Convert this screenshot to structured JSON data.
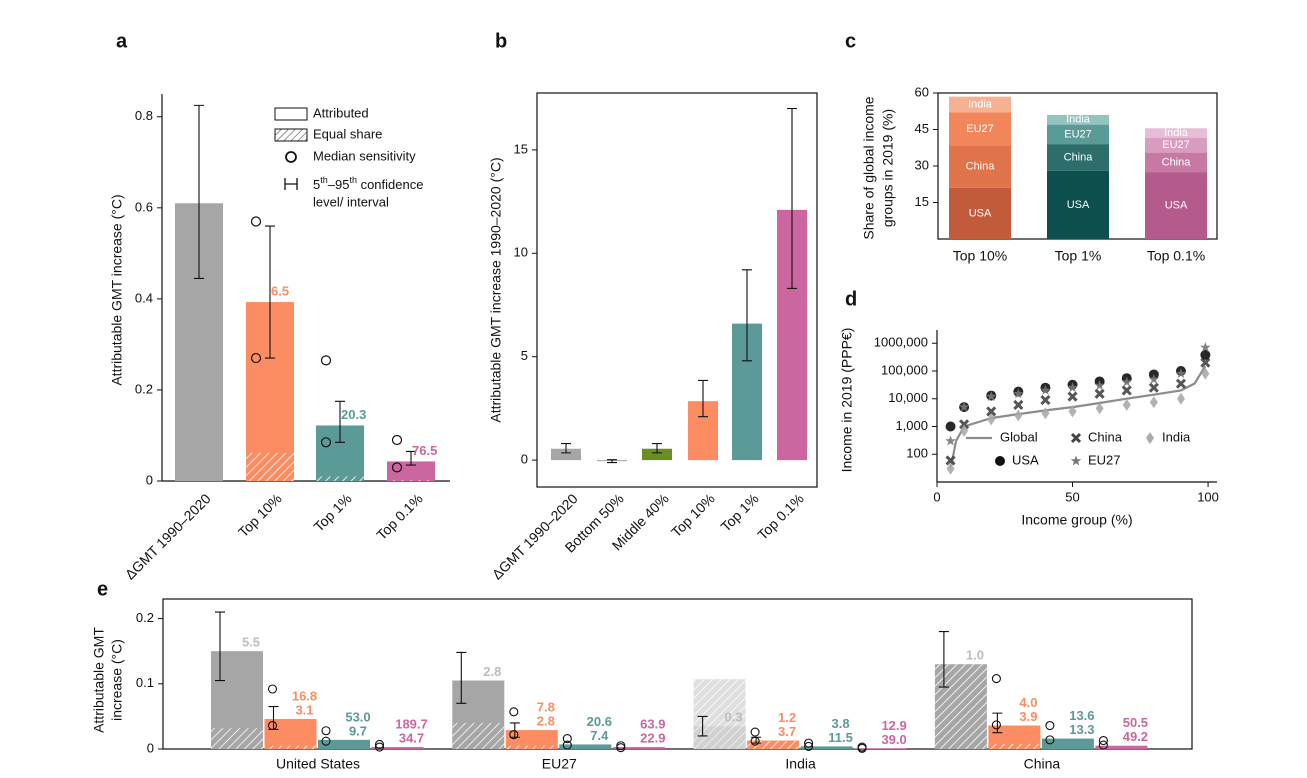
{
  "chart_data": [
    {
      "type": "bar",
      "panel": "a",
      "ylabel": "Attributable GMT increase (°C)",
      "categories": [
        "ΔGMT 1990–2020",
        "Top 10%",
        "Top 1%",
        "Top 0.1%"
      ],
      "values": [
        0.61,
        0.393,
        0.122,
        0.043
      ],
      "colors": [
        "#a6a6a6",
        "#fc8d62",
        "#5b9a97",
        "#cc66a0"
      ],
      "equal_share": [
        null,
        0.062,
        0.01,
        0.002
      ],
      "ci": [
        [
          0.445,
          0.825
        ],
        [
          0.27,
          0.56
        ],
        [
          0.085,
          0.175
        ],
        [
          0.035,
          0.065
        ]
      ],
      "median_sensitivity": [
        null,
        [
          0.57,
          0.27
        ],
        [
          0.265,
          0.085
        ],
        [
          0.09,
          0.03
        ]
      ],
      "ratio_labels": [
        null,
        "6.5",
        "20.3",
        "76.5"
      ],
      "ylim": [
        0,
        0.85
      ],
      "yticks": [
        0,
        0.2,
        0.4,
        0.6,
        0.8
      ],
      "legend": {
        "attributed": "Attributed",
        "equal_share": "Equal share",
        "median": "Median sensitivity",
        "ci": [
          "5",
          "th",
          "–95",
          "th",
          " confidence"
        ],
        "ci_line2": "level/ interval"
      }
    },
    {
      "type": "bar",
      "panel": "b",
      "ylabel": "Attributable GMT increase 1990–2020 (°C)",
      "categories": [
        "ΔGMT 1990–2020",
        "Bottom 50%",
        "Middle 40%",
        "Top 10%",
        "Top 1%",
        "Top 0.1%"
      ],
      "values": [
        0.55,
        -0.05,
        0.55,
        2.85,
        6.6,
        12.1
      ],
      "colors": [
        "#a6a6a6",
        "#a6a6a6",
        "#6b8e23",
        "#fc8d62",
        "#5b9a97",
        "#cc66a0"
      ],
      "ci": [
        [
          0.35,
          0.8
        ],
        [
          -0.12,
          0.02
        ],
        [
          0.35,
          0.8
        ],
        [
          2.1,
          3.85
        ],
        [
          4.8,
          9.2
        ],
        [
          8.3,
          17
        ]
      ],
      "ylim": [
        -1.3,
        17.75
      ],
      "yticks": [
        0,
        5,
        10,
        15
      ],
      "box": true
    },
    {
      "type": "stacked_bar",
      "panel": "c",
      "ylabel": [
        "Share of global income",
        "groups in 2019 (%)"
      ],
      "categories": [
        "Top 10%",
        "Top 1%",
        "Top 0.1%"
      ],
      "series": [
        {
          "name": "USA",
          "values": [
            21,
            28,
            27.5
          ],
          "colors": [
            "#c25b3a",
            "#0d4f4d",
            "#b45b8c"
          ]
        },
        {
          "name": "China",
          "values": [
            17.5,
            11,
            8
          ],
          "colors": [
            "#e0734a",
            "#2e6e6a",
            "#c779a4"
          ]
        },
        {
          "name": "EU27",
          "values": [
            13.5,
            8,
            6
          ],
          "colors": [
            "#f0865a",
            "#5a9a97",
            "#d89cc0"
          ]
        },
        {
          "name": "India",
          "values": [
            6.5,
            4,
            4
          ],
          "colors": [
            "#f6b192",
            "#94c4c0",
            "#e6bcd6"
          ]
        }
      ],
      "ylim": [
        0,
        60
      ],
      "yticks": [
        15,
        30,
        45,
        60
      ],
      "box": true
    },
    {
      "type": "scatter",
      "panel": "d",
      "ylabel": "Income in 2019 (PPP€)",
      "xlabel": "Income group (%)",
      "log_y": true,
      "xlim": [
        0,
        103.3
      ],
      "xticks": [
        0,
        50,
        100
      ],
      "ylim": [
        10,
        3000000
      ],
      "yticks": [
        100,
        {
          "value": 1000,
          "label": "1,000"
        },
        {
          "value": 10000,
          "label": "10,000"
        },
        {
          "value": 100000,
          "label": "100,000"
        },
        {
          "value": 1000000,
          "label": "1000,000"
        }
      ],
      "series": [
        {
          "name": "Global",
          "marker": "line",
          "color": "#8c8c8c",
          "x": [
            5,
            7,
            10,
            20,
            30,
            40,
            50,
            60,
            70,
            80,
            90,
            95,
            99
          ],
          "y": [
            30,
            300,
            1000,
            2000,
            2800,
            3800,
            5000,
            7000,
            10000,
            14000,
            20000,
            35000,
            150000
          ]
        },
        {
          "name": "China",
          "marker": "x",
          "color": "#444444",
          "x": [
            5,
            10,
            20,
            30,
            40,
            50,
            60,
            70,
            80,
            90,
            99
          ],
          "y": [
            60,
            1200,
            3500,
            6000,
            9000,
            12000,
            15000,
            20000,
            25000,
            35000,
            200000
          ]
        },
        {
          "name": "India",
          "marker": "diamond",
          "color": "#aaaaaa",
          "x": [
            5,
            10,
            20,
            30,
            40,
            50,
            60,
            70,
            80,
            90,
            99
          ],
          "y": [
            30,
            700,
            1800,
            2500,
            3000,
            3500,
            4500,
            6000,
            7500,
            10000,
            80000
          ]
        },
        {
          "name": "USA",
          "marker": "circle",
          "color": "#111111",
          "x": [
            5,
            10,
            20,
            30,
            40,
            50,
            60,
            70,
            80,
            90,
            99
          ],
          "y": [
            1000,
            5000,
            13000,
            18000,
            25000,
            32000,
            42000,
            55000,
            75000,
            100000,
            380000
          ]
        },
        {
          "name": "EU27",
          "marker": "star",
          "color": "#777777",
          "x": [
            5,
            10,
            20,
            30,
            40,
            50,
            60,
            70,
            80,
            90,
            99
          ],
          "y": [
            300,
            5000,
            12000,
            15000,
            20000,
            25000,
            30000,
            40000,
            50000,
            80000,
            700000
          ]
        }
      ]
    },
    {
      "type": "grouped_bar",
      "panel": "e",
      "ylabel": [
        "Attributable GMT",
        "increase (°C)"
      ],
      "categories": [
        "United States",
        "EU27",
        "India",
        "China"
      ],
      "series": [
        {
          "color": "#a6a6a6",
          "label_color": "#bdbdbd",
          "values": [
            0.15,
            0.105,
            0.035,
            0.13
          ],
          "equal_share": [
            0.032,
            0.04,
            0.107,
            0.13
          ],
          "ci": [
            [
              0.105,
              0.21
            ],
            [
              0.07,
              0.148
            ],
            [
              0.02,
              0.05
            ],
            [
              0.095,
              0.18
            ]
          ],
          "upper_labels": [
            "5.5",
            "2.8",
            "0.3",
            "1.0"
          ]
        },
        {
          "color": "#fc8d62",
          "label_color": "#fc8d62",
          "values": [
            0.046,
            0.029,
            0.013,
            0.036
          ],
          "equal_share": [
            0.005,
            0.005,
            0.012,
            0.008
          ],
          "ci": [
            [
              0.03,
              0.065
            ],
            [
              0.018,
              0.04
            ],
            [
              0.009,
              0.018
            ],
            [
              0.025,
              0.055
            ]
          ],
          "median_sensitivity": [
            [
              0.092,
              0.036
            ],
            [
              0.057,
              0.022
            ],
            [
              0.026,
              0.012
            ],
            [
              0.108,
              0.037
            ]
          ],
          "upper_labels": [
            "16.8",
            "7.8",
            "1.2",
            "4.0"
          ],
          "lower_labels": [
            "3.1",
            "2.8",
            "3.7",
            "3.9"
          ]
        },
        {
          "color": "#5b9a97",
          "label_color": "#5b9a97",
          "values": [
            0.014,
            0.007,
            0.004,
            0.016
          ],
          "median_sensitivity": [
            [
              0.028,
              0.012
            ],
            [
              0.016,
              0.006
            ],
            [
              0.009,
              0.004
            ],
            [
              0.036,
              0.014
            ]
          ],
          "upper_labels": [
            "53.0",
            "20.6",
            "3.8",
            "13.6"
          ],
          "lower_labels": [
            "9.7",
            "7.4",
            "11.5",
            "13.3"
          ]
        },
        {
          "color": "#cc66a0",
          "label_color": "#cc66a0",
          "values": [
            0.003,
            0.003,
            0.001,
            0.005
          ],
          "median_sensitivity": [
            [
              0.007,
              0.003
            ],
            [
              0.005,
              0.002
            ],
            [
              0.003,
              0.001
            ],
            [
              0.013,
              0.006
            ]
          ],
          "upper_labels": [
            "189.7",
            "63.9",
            "12.9",
            "50.5"
          ],
          "lower_labels": [
            "34.7",
            "22.9",
            "39.0",
            "49.2"
          ]
        }
      ],
      "ylim": [
        0,
        0.23
      ],
      "yticks": [
        0,
        0.1,
        0.2
      ],
      "box": true
    }
  ]
}
